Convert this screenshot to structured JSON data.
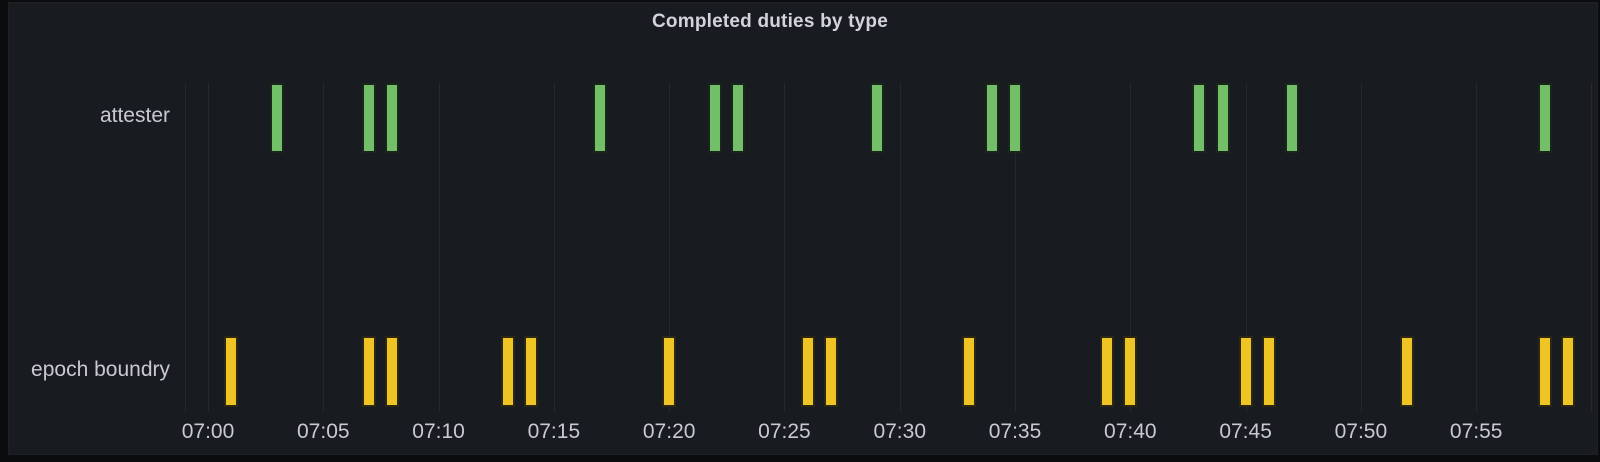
{
  "panel": {
    "title": "Completed duties by type",
    "background_color": "#181B1F",
    "text_color": "#C8C9D3"
  },
  "chart_data": {
    "type": "bar",
    "subtype": "event-timeline",
    "title": "Completed duties by type",
    "orientation": "vertical-event-marks",
    "grid": "vertical-only",
    "legend": "none",
    "x_axis": {
      "tick_labels": [
        "07:00",
        "07:05",
        "07:10",
        "07:15",
        "07:20",
        "07:25",
        "07:30",
        "07:35",
        "07:40",
        "07:45",
        "07:50",
        "07:55"
      ],
      "tick_interval_minutes": 5,
      "visible_range": [
        "06:59",
        "08:00"
      ]
    },
    "series": [
      {
        "name": "attester",
        "row": "top",
        "color": "#73BF69",
        "times": [
          "07:03",
          "07:07",
          "07:08",
          "07:17",
          "07:22",
          "07:23",
          "07:29",
          "07:34",
          "07:35",
          "07:43",
          "07:44",
          "07:47",
          "07:58"
        ]
      },
      {
        "name": "epoch boundry",
        "row": "bottom",
        "color": "#EEC524",
        "times": [
          "07:01",
          "07:07",
          "07:08",
          "07:13",
          "07:14",
          "07:20",
          "07:26",
          "07:27",
          "07:33",
          "07:39",
          "07:40",
          "07:45",
          "07:46",
          "07:52",
          "07:58",
          "07:59"
        ]
      }
    ]
  }
}
